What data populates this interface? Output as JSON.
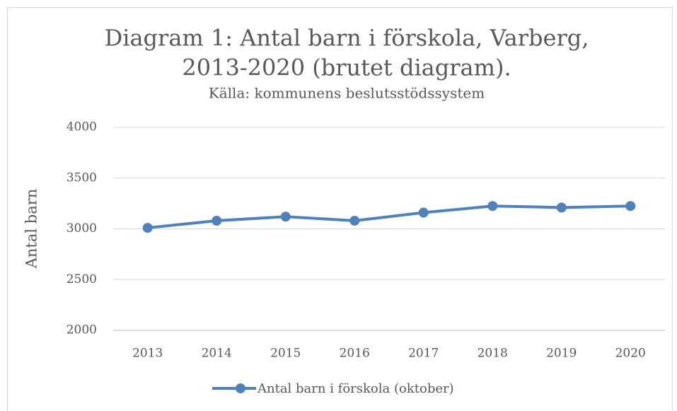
{
  "chart_data": {
    "type": "line",
    "title": "Diagram 1: Antal barn i förskola, Varberg,",
    "title_line2": "2013-2020 (brutet diagram).",
    "subtitle": "Källa: kommunens beslutsstödssystem",
    "y_label": "Antal barn",
    "categories": [
      "2013",
      "2014",
      "2015",
      "2016",
      "2017",
      "2018",
      "2019",
      "2020"
    ],
    "series": [
      {
        "name": "Antal barn i förskola (oktober)",
        "color": "#4f81bd",
        "values": [
          3010,
          3080,
          3120,
          3080,
          3160,
          3225,
          3210,
          3225
        ]
      }
    ],
    "ylim": [
      2000,
      4000
    ],
    "yticks": [
      2000,
      2500,
      3000,
      3500,
      4000
    ],
    "grid": true,
    "legend": "bottom"
  }
}
